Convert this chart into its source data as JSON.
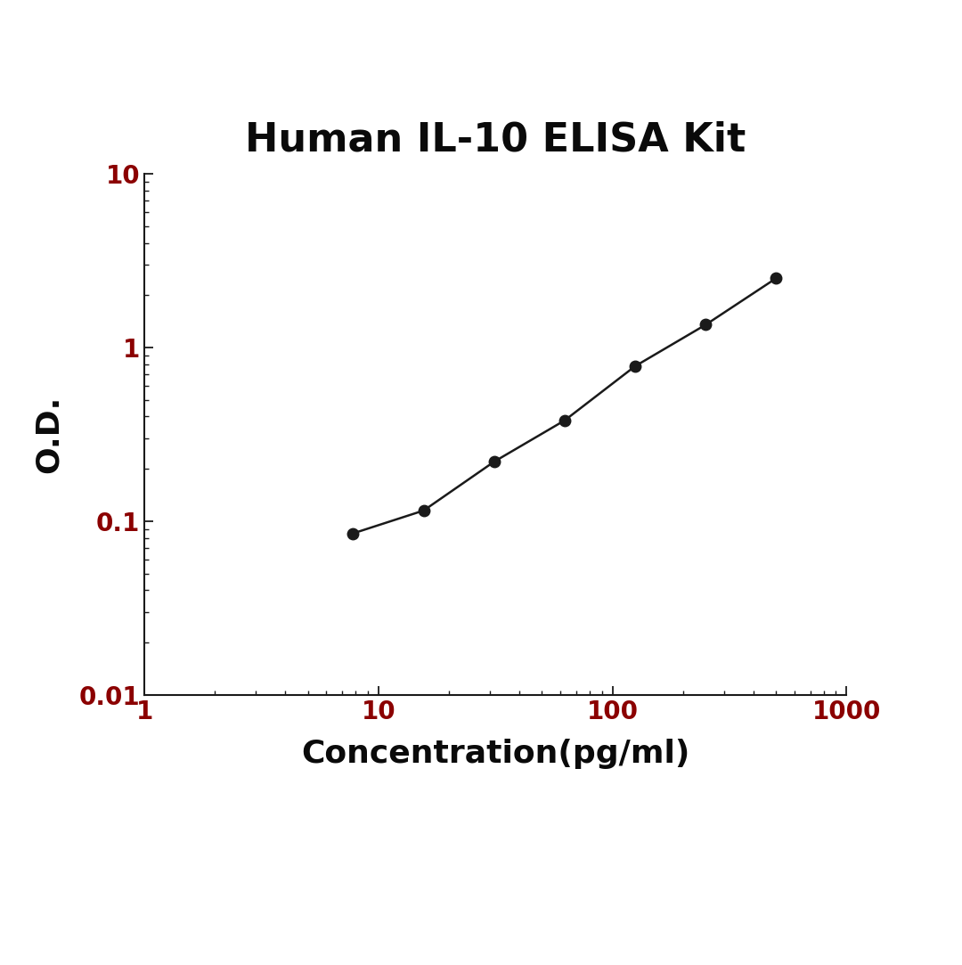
{
  "title": "Human IL-10 ELISA Kit",
  "xlabel": "Concentration(pg/ml)",
  "ylabel": "O.D.",
  "x_data": [
    7.8,
    15.6,
    31.25,
    62.5,
    125,
    250,
    500
  ],
  "y_data": [
    0.085,
    0.115,
    0.22,
    0.38,
    0.78,
    1.35,
    2.5
  ],
  "xlim": [
    1,
    1000
  ],
  "ylim": [
    0.01,
    10
  ],
  "line_color": "#1a1a1a",
  "marker_color": "#1a1a1a",
  "title_color": "#0a0a0a",
  "axis_label_color": "#0a0a0a",
  "tick_label_color": "#8B0000",
  "background_color": "#ffffff",
  "title_fontsize": 32,
  "label_fontsize": 26,
  "tick_fontsize": 20,
  "marker_size": 9,
  "line_width": 1.8
}
